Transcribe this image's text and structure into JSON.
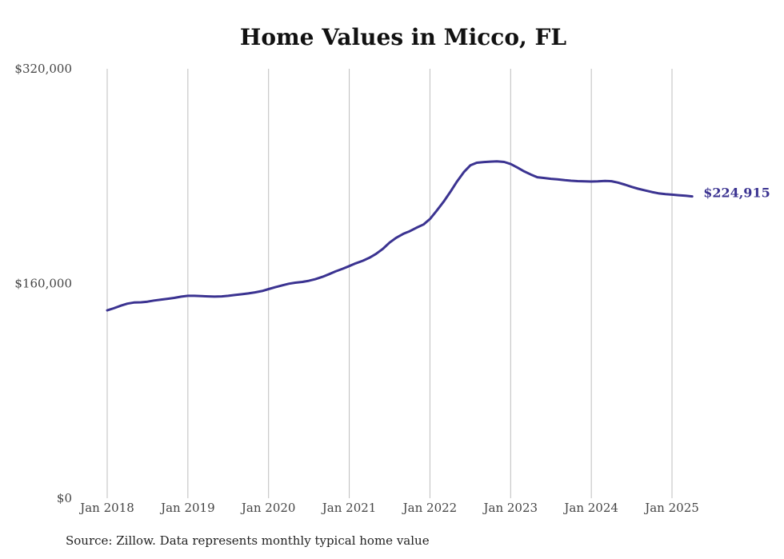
{
  "chart_data": {
    "type": "line",
    "title": "Home Values in Micco, FL",
    "source": "Source: Zillow. Data represents monthly typical home value",
    "xlabel": "",
    "ylabel": "",
    "ylim": [
      0,
      320000
    ],
    "yticks": [
      {
        "value": 0,
        "label": "$0"
      },
      {
        "value": 160000,
        "label": "$160,000"
      },
      {
        "value": 320000,
        "label": "$320,000"
      }
    ],
    "xticks": [
      {
        "value": 2018,
        "label": "Jan 2018"
      },
      {
        "value": 2019,
        "label": "Jan 2019"
      },
      {
        "value": 2020,
        "label": "Jan 2020"
      },
      {
        "value": 2021,
        "label": "Jan 2021"
      },
      {
        "value": 2022,
        "label": "Jan 2022"
      },
      {
        "value": 2023,
        "label": "Jan 2023"
      },
      {
        "value": 2024,
        "label": "Jan 2024"
      },
      {
        "value": 2025,
        "label": "Jan 2025"
      }
    ],
    "xlim": [
      2018,
      2025.33
    ],
    "grid": "vertical",
    "line_color": "#3b3391",
    "end_label": "$224,915",
    "series": [
      {
        "points": [
          [
            2018.0,
            140000
          ],
          [
            2018.08,
            141500
          ],
          [
            2018.17,
            143500
          ],
          [
            2018.25,
            145000
          ],
          [
            2018.33,
            145800
          ],
          [
            2018.42,
            146000
          ],
          [
            2018.5,
            146500
          ],
          [
            2018.58,
            147300
          ],
          [
            2018.67,
            148000
          ],
          [
            2018.75,
            148600
          ],
          [
            2018.83,
            149300
          ],
          [
            2018.92,
            150200
          ],
          [
            2019.0,
            150800
          ],
          [
            2019.08,
            150800
          ],
          [
            2019.17,
            150600
          ],
          [
            2019.25,
            150400
          ],
          [
            2019.33,
            150200
          ],
          [
            2019.42,
            150400
          ],
          [
            2019.5,
            150800
          ],
          [
            2019.58,
            151400
          ],
          [
            2019.67,
            152000
          ],
          [
            2019.75,
            152600
          ],
          [
            2019.83,
            153400
          ],
          [
            2019.92,
            154400
          ],
          [
            2020.0,
            155800
          ],
          [
            2020.08,
            157200
          ],
          [
            2020.17,
            158600
          ],
          [
            2020.25,
            159800
          ],
          [
            2020.33,
            160600
          ],
          [
            2020.42,
            161200
          ],
          [
            2020.5,
            162000
          ],
          [
            2020.58,
            163200
          ],
          [
            2020.67,
            165000
          ],
          [
            2020.75,
            167000
          ],
          [
            2020.83,
            169000
          ],
          [
            2020.92,
            171000
          ],
          [
            2021.0,
            173000
          ],
          [
            2021.08,
            175000
          ],
          [
            2021.17,
            177000
          ],
          [
            2021.25,
            179200
          ],
          [
            2021.33,
            182000
          ],
          [
            2021.42,
            186000
          ],
          [
            2021.5,
            190500
          ],
          [
            2021.58,
            194000
          ],
          [
            2021.67,
            197000
          ],
          [
            2021.75,
            199000
          ],
          [
            2021.83,
            201500
          ],
          [
            2021.92,
            204000
          ],
          [
            2022.0,
            208000
          ],
          [
            2022.08,
            214000
          ],
          [
            2022.17,
            221000
          ],
          [
            2022.25,
            228000
          ],
          [
            2022.33,
            235500
          ],
          [
            2022.42,
            243000
          ],
          [
            2022.5,
            248000
          ],
          [
            2022.58,
            250000
          ],
          [
            2022.67,
            250500
          ],
          [
            2022.75,
            250800
          ],
          [
            2022.83,
            251000
          ],
          [
            2022.92,
            250600
          ],
          [
            2023.0,
            249000
          ],
          [
            2023.08,
            246500
          ],
          [
            2023.17,
            243500
          ],
          [
            2023.25,
            241200
          ],
          [
            2023.33,
            239200
          ],
          [
            2023.42,
            238600
          ],
          [
            2023.5,
            238000
          ],
          [
            2023.58,
            237600
          ],
          [
            2023.67,
            237000
          ],
          [
            2023.75,
            236600
          ],
          [
            2023.83,
            236300
          ],
          [
            2023.92,
            236100
          ],
          [
            2024.0,
            236000
          ],
          [
            2024.08,
            236100
          ],
          [
            2024.17,
            236400
          ],
          [
            2024.25,
            236200
          ],
          [
            2024.33,
            235200
          ],
          [
            2024.42,
            233600
          ],
          [
            2024.5,
            232000
          ],
          [
            2024.58,
            230600
          ],
          [
            2024.67,
            229300
          ],
          [
            2024.75,
            228200
          ],
          [
            2024.83,
            227200
          ],
          [
            2024.92,
            226600
          ],
          [
            2025.0,
            226200
          ],
          [
            2025.08,
            225800
          ],
          [
            2025.17,
            225400
          ],
          [
            2025.25,
            224915
          ]
        ]
      }
    ]
  }
}
